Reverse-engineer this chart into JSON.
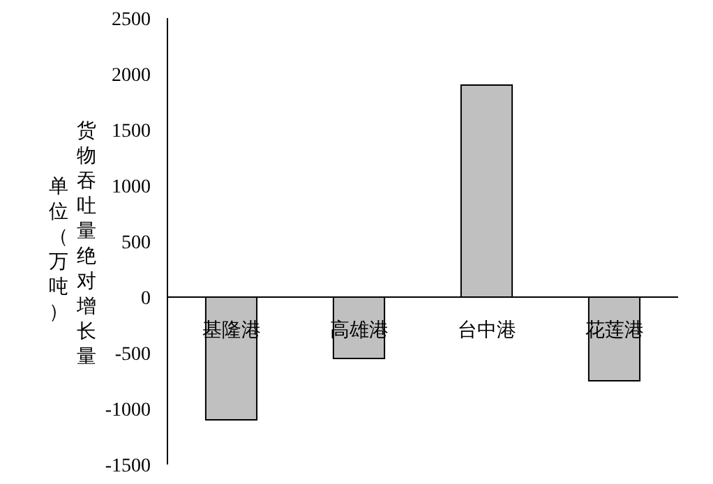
{
  "chart_data": {
    "type": "bar",
    "categories": [
      "基隆港",
      "高雄港",
      "台中港",
      "花莲港"
    ],
    "values": [
      -1100,
      -550,
      1900,
      -750
    ],
    "color": "#c0c0c0",
    "ylabel": "货物吞吐量绝对增长量",
    "annotations": [
      "单位（万吨）"
    ],
    "ylim": [
      -1500,
      2500
    ],
    "yticks": [
      -1500,
      -1000,
      -500,
      0,
      500,
      1000,
      1500,
      2000,
      2500
    ],
    "grid": false
  }
}
